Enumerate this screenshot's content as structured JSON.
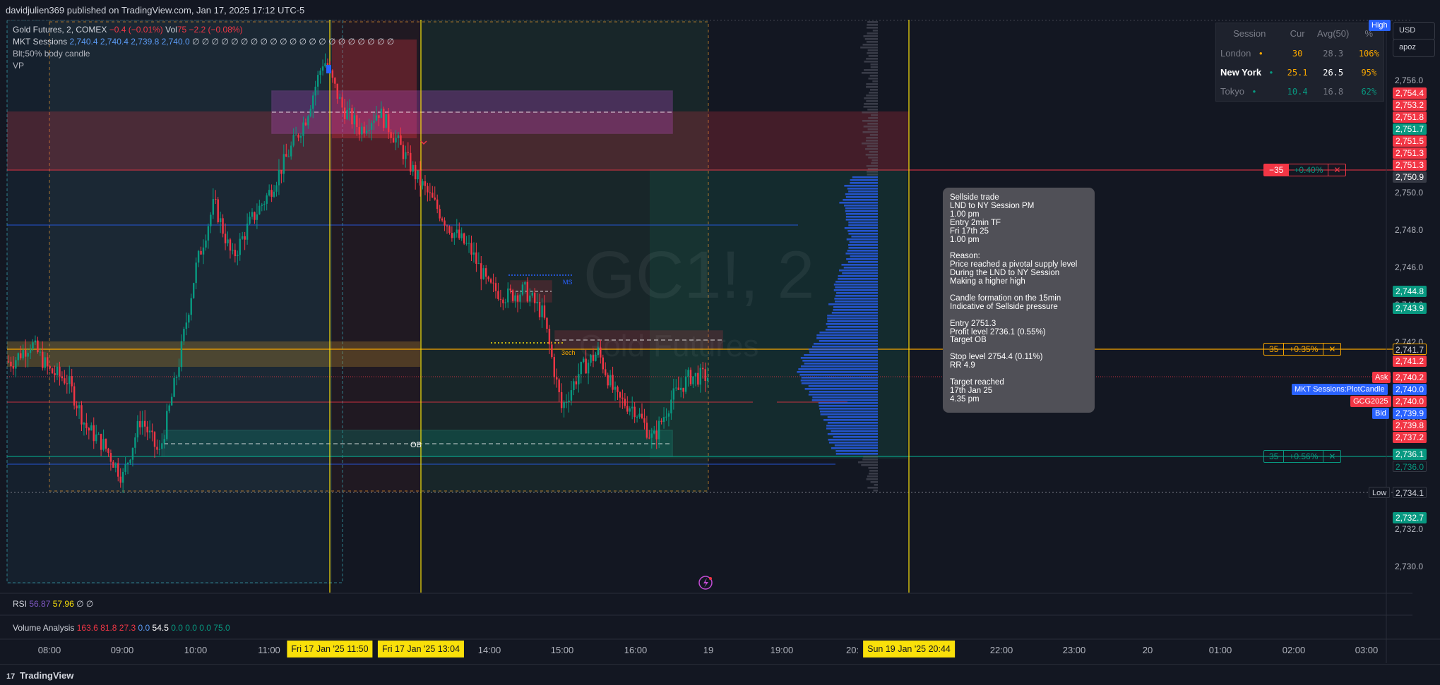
{
  "header": {
    "published": "davidjulien369 published on TradingView.com, Jan 17, 2025 17:12 UTC-5"
  },
  "legend": {
    "symbol": "Gold Futures, 2, COMEX",
    "change": "−0.4 (−0.01%)",
    "vol_label": "Vol",
    "vol_value": "75  −2.2 (−0.08%)",
    "mkt_label": "MKT Sessions",
    "mkt_values": "2,740.4  2,740.4  2,739.8  2,740.0",
    "mkt_empty": "∅ ∅ ∅ ∅ ∅ ∅ ∅ ∅ ∅ ∅ ∅ ∅ ∅ ∅ ∅ ∅ ∅ ∅ ∅ ∅ ∅",
    "body_candle": "Blt;50% body candle",
    "vp": "VP"
  },
  "top_buttons": {
    "currency": "USD",
    "user": "apoz"
  },
  "watermark": {
    "main": "GC1!, 2",
    "sub": "Gold Futures"
  },
  "session_table": {
    "headers": [
      "Session",
      "Cur",
      "Avg(50)",
      "%"
    ],
    "rows": [
      {
        "name": "London",
        "dot": "•",
        "cur": "30",
        "avg": "28.3",
        "pct": "106%"
      },
      {
        "name": "New York",
        "dot": "•",
        "cur": "25.1",
        "avg": "26.5",
        "pct": "95%"
      },
      {
        "name": "Tokyo",
        "dot": "•",
        "cur": "10.4",
        "avg": "16.8",
        "pct": "62%"
      }
    ]
  },
  "price_tags": [
    {
      "label": "2,754.4",
      "color": "#f23645"
    },
    {
      "label": "2,753.2",
      "color": "#f23645"
    },
    {
      "label": "2,751.8",
      "color": "#f23645"
    },
    {
      "label": "2,751.7",
      "color": "#089981"
    },
    {
      "label": "2,751.5",
      "color": "#f23645"
    },
    {
      "label": "2,751.3",
      "color": "#f23645"
    },
    {
      "label": "2,751.3",
      "color": "#f23645"
    },
    {
      "label": "2,750.9",
      "color": "#363a45"
    },
    {
      "label": "2,744.8",
      "color": "#089981"
    },
    {
      "label": "2,743.9",
      "color": "#089981"
    },
    {
      "label": "2,741.7",
      "color": "#131722"
    },
    {
      "label": "2,741.2",
      "color": "#f23645"
    },
    {
      "label": "2,740.2",
      "color": "#f23645"
    },
    {
      "label": "2,740.0",
      "color": "#2962ff"
    },
    {
      "label": "2,740.0",
      "color": "#f23645"
    },
    {
      "label": "2,739.9",
      "color": "#2962ff"
    },
    {
      "label": "2,739.8",
      "color": "#f23645"
    },
    {
      "label": "2,737.2",
      "color": "#f23645"
    },
    {
      "label": "2,736.1",
      "color": "#089981"
    },
    {
      "label": "2,736.0",
      "color": "#131722"
    },
    {
      "label": "2,734.1",
      "color": "#131722"
    },
    {
      "label": "2,732.7",
      "color": "#089981"
    }
  ],
  "side_tags": {
    "high": "High",
    "ask": "Ask",
    "mkt_plot": "MKT Sessions:PlotCandle",
    "gcg": "GCG2025",
    "bid": "Bid",
    "low": "Low"
  },
  "position_boxes": [
    {
      "qty": "−35",
      "pct": "+0.40%",
      "x": "✕"
    },
    {
      "qty": "35",
      "pct": "+0.35%",
      "x": "✕"
    },
    {
      "qty": "35",
      "pct": "+0.56%",
      "x": "✕"
    }
  ],
  "annotations": {
    "ob": "OB",
    "ms": "MS",
    "bech": "3ech"
  },
  "note": {
    "text": "Sellside trade\nLND to NY Session PM\n1.00 pm\nEntry 2min TF\nFri 17th 25\n1.00 pm\n\nReason:\nPrice reached a pivotal supply level\nDuring the LND to NY Session\nMaking a higher high\n\nCandle formation on the 15min\nIndicative of Sellside pressure\n\nEntry 2751.3\nProfit level 2736.1 (0.55%)\nTarget OB\n\nStop level 2754.4 (0.11%)\nRR 4.9\n\nTarget reached\n17th Jan 25\n4.35 pm"
  },
  "rsi": {
    "label": "RSI",
    "v1": "56.87",
    "v2": "57.96",
    "empties": "∅  ∅"
  },
  "volume_analysis": {
    "label": "Volume Analysis",
    "red": "163.6  81.8  27.3",
    "blue": "0.0",
    "white": "54.5",
    "green": "0.0  0.0  0.0  75.0"
  },
  "time_axis": {
    "labels": [
      "08:00",
      "09:00",
      "10:00",
      "11:00",
      "14:00",
      "15:00",
      "16:00",
      "19",
      "19:00",
      "20:",
      "22:00",
      "23:00",
      "20",
      "01:00",
      "02:00",
      "03:00"
    ],
    "highlights": [
      "Fri 17 Jan '25   11:50",
      "Fri 17 Jan '25   13:04",
      "Sun 19 Jan '25   20:44"
    ]
  },
  "footer": {
    "brand": "TradingView"
  },
  "chart_data": {
    "type": "candlestick",
    "symbol": "GC1!",
    "interval": "2",
    "ylim": [
      2728.5,
      2757.5
    ],
    "y_ticks": [
      2756.0,
      2752.0,
      2750.0,
      2748.0,
      2746.0,
      2744.0,
      2742.0,
      2740.0,
      2738.0,
      2736.0,
      2734.0,
      2732.0,
      2730.0
    ],
    "y_tick_labels": [
      "2,756.0",
      "2,752.0",
      "2,750.0",
      "2,748.0",
      "2,746.0",
      "2,744.0",
      "2,742.0",
      "2,740.0",
      "2,738.0",
      "2,736.0",
      "2,734.0",
      "2,732.0",
      "2,730.0"
    ],
    "close_path": [
      [
        "07:30",
        2741.0
      ],
      [
        "07:45",
        2742.0
      ],
      [
        "08:00",
        2740.5
      ],
      [
        "08:15",
        2740.0
      ],
      [
        "08:30",
        2737.5
      ],
      [
        "08:45",
        2736.5
      ],
      [
        "09:00",
        2734.8
      ],
      [
        "09:15",
        2738.0
      ],
      [
        "09:30",
        2736.0
      ],
      [
        "09:45",
        2740.5
      ],
      [
        "10:00",
        2746.0
      ],
      [
        "10:15",
        2749.5
      ],
      [
        "10:30",
        2746.5
      ],
      [
        "10:45",
        2748.5
      ],
      [
        "11:00",
        2750.0
      ],
      [
        "11:15",
        2752.0
      ],
      [
        "11:30",
        2754.0
      ],
      [
        "11:45",
        2757.2
      ],
      [
        "12:00",
        2754.6
      ],
      [
        "12:15",
        2753.4
      ],
      [
        "12:30",
        2754.4
      ],
      [
        "12:45",
        2752.8
      ],
      [
        "13:00",
        2751.0
      ],
      [
        "13:15",
        2749.5
      ],
      [
        "13:30",
        2748.0
      ],
      [
        "13:45",
        2747.0
      ],
      [
        "14:00",
        2745.0
      ],
      [
        "14:15",
        2744.5
      ],
      [
        "14:30",
        2744.8
      ],
      [
        "14:45",
        2743.5
      ],
      [
        "15:00",
        2738.5
      ],
      [
        "15:15",
        2740.5
      ],
      [
        "15:30",
        2741.5
      ],
      [
        "15:45",
        2739.0
      ],
      [
        "16:00",
        2738.5
      ],
      [
        "16:15",
        2736.8
      ],
      [
        "16:30",
        2739.0
      ],
      [
        "16:45",
        2740.2
      ]
    ],
    "levels": {
      "high": 2757.2,
      "supply_zone_top": 2754.4,
      "supply_zone_bottom": 2753.2,
      "short_entry": 2751.3,
      "stop": 2754.4,
      "target": 2736.1,
      "low": 2734.1,
      "ob_zone_top": 2737.2,
      "ob_zone_bottom": 2736.0
    },
    "sessions": [
      "London",
      "New York",
      "Tokyo"
    ]
  }
}
